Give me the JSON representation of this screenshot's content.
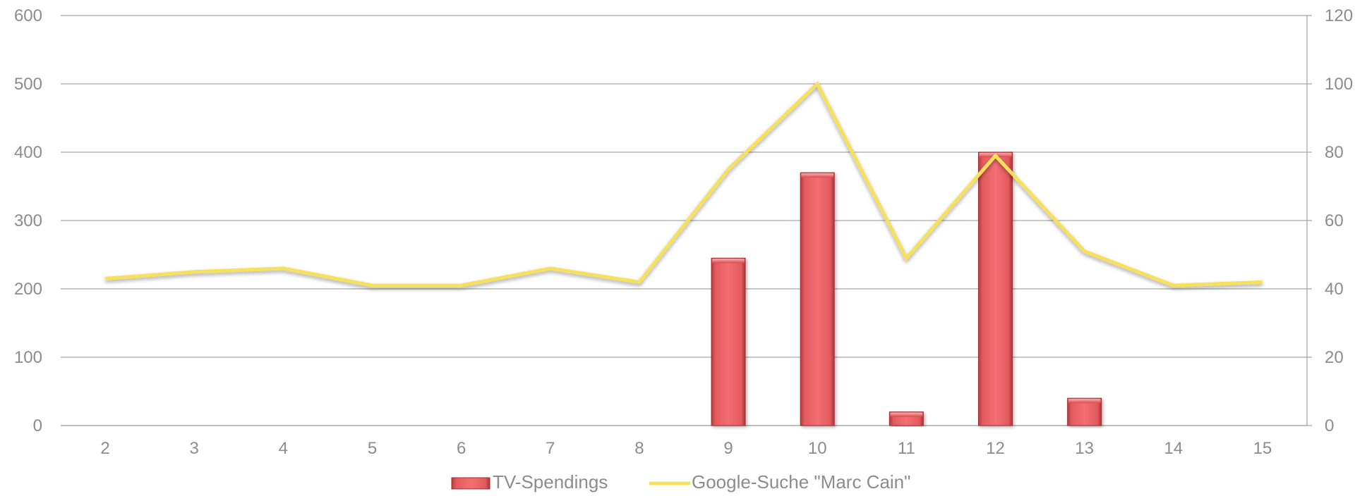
{
  "chart_data": {
    "type": "bar",
    "categories": [
      "2",
      "3",
      "4",
      "5",
      "6",
      "7",
      "8",
      "9",
      "10",
      "11",
      "12",
      "13",
      "14",
      "15"
    ],
    "series": [
      {
        "name": "TV-Spendings",
        "type": "bar",
        "axis": "left",
        "color": "#f06a6e",
        "values": [
          0,
          0,
          0,
          0,
          0,
          0,
          0,
          245,
          370,
          20,
          400,
          40,
          0,
          0
        ]
      },
      {
        "name": "Google-Suche \"Marc Cain\"",
        "type": "line",
        "axis": "right",
        "color": "#f7e15c",
        "values": [
          43,
          45,
          46,
          41,
          41,
          46,
          42,
          75,
          100,
          49,
          79,
          51,
          41,
          42
        ]
      }
    ],
    "y_left": {
      "ylim": [
        0,
        600
      ],
      "ticks": [
        "0",
        "100",
        "200",
        "300",
        "400",
        "500",
        "600"
      ]
    },
    "y_right": {
      "ylim": [
        0,
        120
      ],
      "ticks": [
        "0",
        "20",
        "40",
        "60",
        "80",
        "100",
        "120"
      ]
    },
    "grid": true,
    "legend": "bottom-center",
    "title": "",
    "xlabel": "",
    "ylabel": ""
  }
}
